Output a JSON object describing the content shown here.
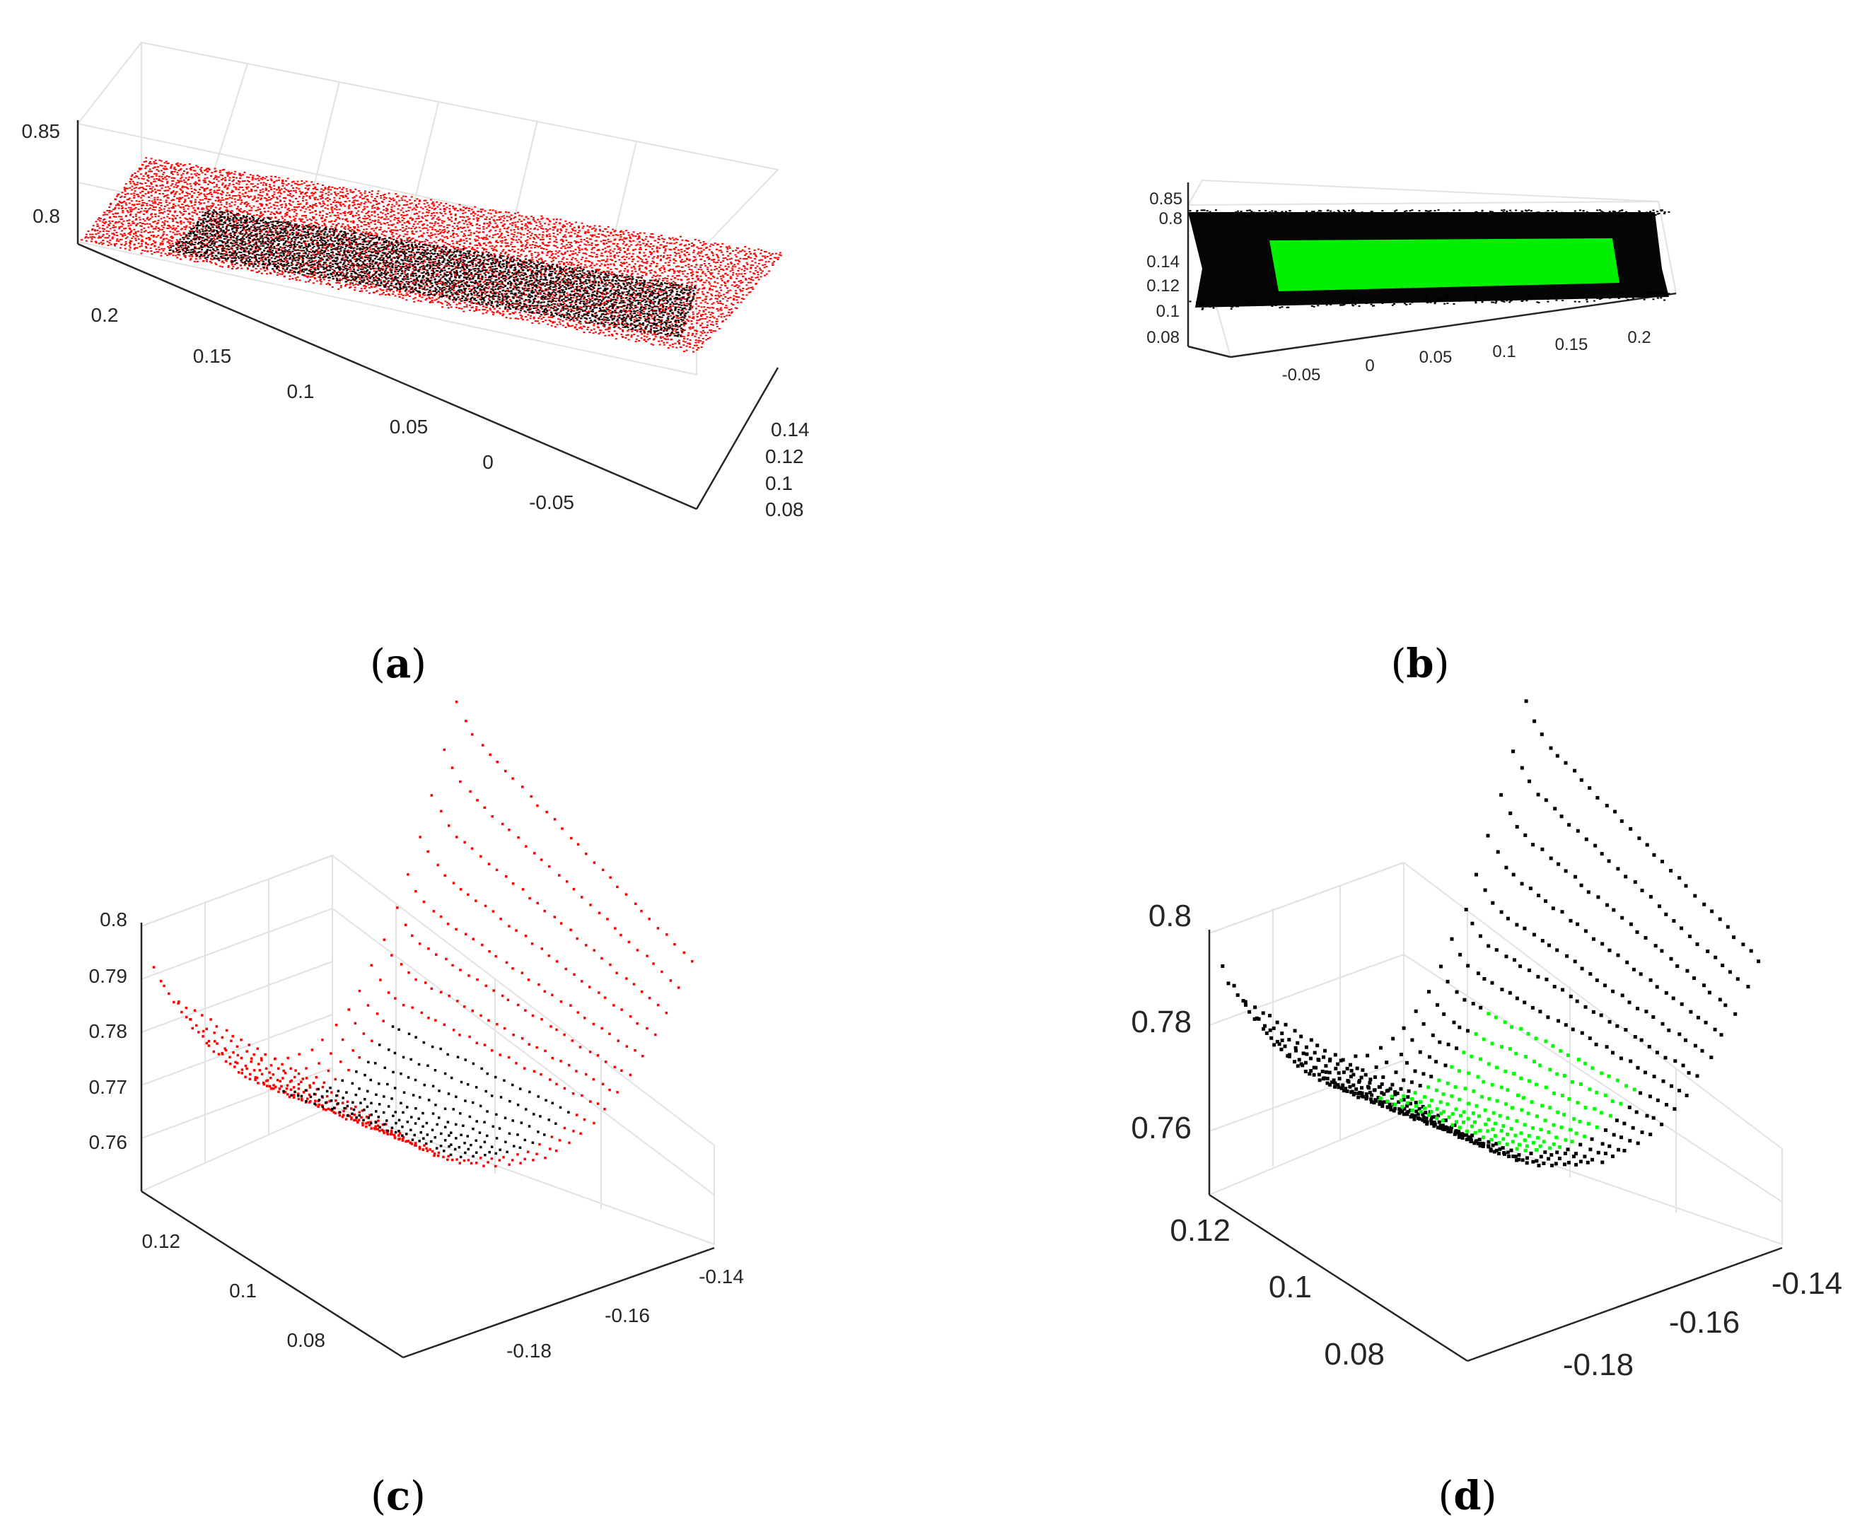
{
  "figure": {
    "panels": [
      {
        "id": "a",
        "caption_paren_open": "(",
        "caption_letter": "a",
        "caption_paren_close": ")"
      },
      {
        "id": "b",
        "caption_paren_open": "(",
        "caption_letter": "b",
        "caption_paren_close": ")"
      },
      {
        "id": "c",
        "caption_paren_open": "(",
        "caption_letter": "c",
        "caption_paren_close": ")"
      },
      {
        "id": "d",
        "caption_paren_open": "(",
        "caption_letter": "d",
        "caption_paren_close": ")"
      }
    ]
  },
  "chart_data": [
    {
      "type": "scatter",
      "panel": "a",
      "projection": "3d",
      "grid": true,
      "x_ticks": [
        "-0.05",
        "0",
        "0.05",
        "0.1",
        "0.15",
        "0.2"
      ],
      "y_ticks": [
        "0.08",
        "0.1",
        "0.12",
        "0.14"
      ],
      "z_ticks": [
        "0.8",
        "0.85"
      ],
      "xlim": [
        -0.1,
        0.22
      ],
      "ylim": [
        0.075,
        0.145
      ],
      "zlim": [
        0.76,
        0.86
      ],
      "series": [
        {
          "color": "#ff0000",
          "role": "outer points"
        },
        {
          "color": "#000000",
          "role": "inner region points"
        }
      ]
    },
    {
      "type": "scatter",
      "panel": "b",
      "projection": "3d",
      "grid": true,
      "x_ticks": [
        "-0.05",
        "0",
        "0.05",
        "0.1",
        "0.15",
        "0.2"
      ],
      "y_ticks": [
        "0.08",
        "0.1",
        "0.12",
        "0.14"
      ],
      "z_ticks": [
        "0.8",
        "0.85"
      ],
      "series": [
        {
          "color": "#000000",
          "role": "outer points"
        },
        {
          "color": "#00ff00",
          "role": "inner region points"
        }
      ]
    },
    {
      "type": "scatter",
      "panel": "c",
      "projection": "3d",
      "grid": true,
      "x_ticks": [
        "-0.18",
        "-0.16",
        "-0.14"
      ],
      "y_ticks": [
        "0.08",
        "0.1",
        "0.12"
      ],
      "z_ticks": [
        "0.76",
        "0.77",
        "0.78",
        "0.79",
        "0.8"
      ],
      "xlim": [
        -0.19,
        -0.13
      ],
      "ylim": [
        0.07,
        0.13
      ],
      "zlim": [
        0.75,
        0.8
      ],
      "series": [
        {
          "color": "#ff0000",
          "role": "outer points"
        },
        {
          "color": "#000000",
          "role": "inner region points"
        }
      ]
    },
    {
      "type": "scatter",
      "panel": "d",
      "projection": "3d",
      "grid": true,
      "x_ticks": [
        "-0.18",
        "-0.16",
        "-0.14"
      ],
      "y_ticks": [
        "0.08",
        "0.1",
        "0.12"
      ],
      "z_ticks": [
        "0.76",
        "0.78",
        "0.8"
      ],
      "xlim": [
        -0.19,
        -0.13
      ],
      "ylim": [
        0.07,
        0.13
      ],
      "zlim": [
        0.75,
        0.8
      ],
      "series": [
        {
          "color": "#000000",
          "role": "outer points"
        },
        {
          "color": "#00ff00",
          "role": "inner region points"
        }
      ]
    }
  ]
}
